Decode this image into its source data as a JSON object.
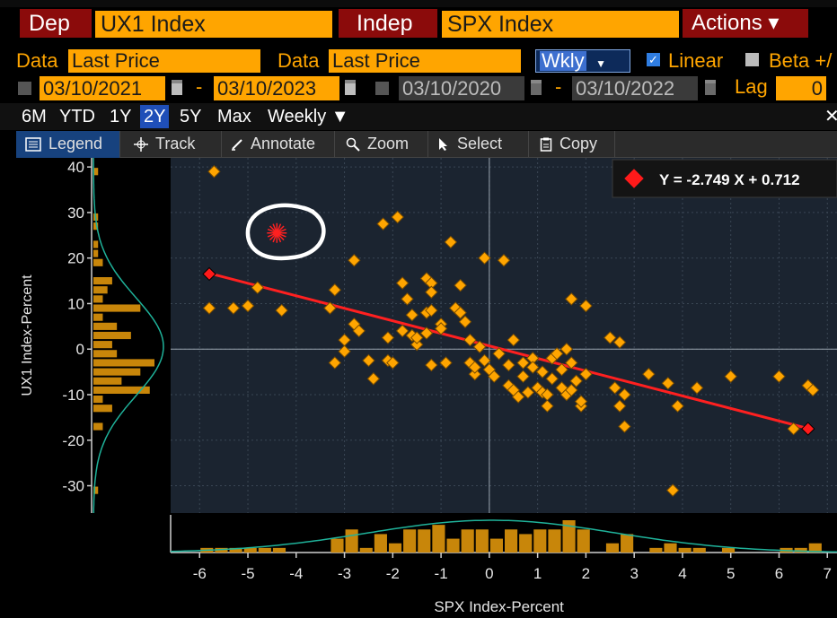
{
  "header": {
    "dep_label": "Dep",
    "dep_value": "UX1 Index",
    "indep_label": "Indep",
    "indep_value": "SPX Index",
    "actions_label": "Actions ▾"
  },
  "data_row": {
    "dep_data_label": "Data",
    "dep_data_value": "Last Price",
    "indep_data_label": "Data",
    "indep_data_value": "Last Price",
    "frequency": "Wkly",
    "linear_label": "Linear",
    "linear_checked": true,
    "beta_label": "Beta +/"
  },
  "date_row": {
    "dep_start": "03/10/2021",
    "dep_end": "03/10/2023",
    "indep_start": "03/10/2020",
    "indep_end": "03/10/2022",
    "lag_label": "Lag",
    "lag_value": "0"
  },
  "periods": [
    "6M",
    "YTD",
    "1Y",
    "2Y",
    "5Y",
    "Max"
  ],
  "active_period": "2Y",
  "periodicity": "Weekly ▼",
  "toolbar": {
    "legend": "Legend",
    "track": "Track",
    "annotate": "Annotate",
    "zoom": "Zoom",
    "select": "Select",
    "copy": "Copy"
  },
  "colors": {
    "accent": "#ffa500",
    "header_red": "#8b0b0b",
    "plot_bg": "#1b2430",
    "regression_line": "#ff2020",
    "distribution_curve": "#1fb29a"
  },
  "chart_data": {
    "type": "scatter",
    "xlabel": "SPX Index-Percent",
    "ylabel": "UX1 Index-Percent",
    "xlim": [
      -6.6,
      7.2
    ],
    "ylim": [
      -36,
      42
    ],
    "x_ticks": [
      -6,
      -5,
      -4,
      -3,
      -2,
      -1,
      0,
      1,
      2,
      3,
      4,
      5,
      6,
      7
    ],
    "y_ticks": [
      40,
      30,
      20,
      10,
      0,
      -10,
      -20,
      -30
    ],
    "regression": {
      "label": "Y = -2.749 X + 0.712",
      "slope": -2.749,
      "intercept": 0.712,
      "x_range": [
        -5.8,
        6.6
      ]
    },
    "points": [
      [
        -5.7,
        39
      ],
      [
        -5.8,
        9
      ],
      [
        -5.3,
        9
      ],
      [
        -5.0,
        9.5
      ],
      [
        -4.8,
        13.5
      ],
      [
        -4.3,
        8.5
      ],
      [
        -3.3,
        9
      ],
      [
        -3.2,
        13
      ],
      [
        -3.2,
        -3
      ],
      [
        -3.0,
        -0.5
      ],
      [
        -3.0,
        2
      ],
      [
        -2.8,
        5.5
      ],
      [
        -2.7,
        4
      ],
      [
        -2.8,
        19.5
      ],
      [
        -2.5,
        -2.5
      ],
      [
        -2.4,
        -6.5
      ],
      [
        -2.2,
        27.5
      ],
      [
        -2.1,
        2.5
      ],
      [
        -2.1,
        -2.5
      ],
      [
        -2.0,
        -3
      ],
      [
        -1.9,
        29
      ],
      [
        -1.8,
        4
      ],
      [
        -1.8,
        14.5
      ],
      [
        -1.7,
        11
      ],
      [
        -1.6,
        7.5
      ],
      [
        -1.6,
        3
      ],
      [
        -1.5,
        1
      ],
      [
        -1.5,
        2.5
      ],
      [
        -1.3,
        3.5
      ],
      [
        -1.3,
        8
      ],
      [
        -1.3,
        15.5
      ],
      [
        -1.2,
        14.5
      ],
      [
        -1.2,
        12.5
      ],
      [
        -1.2,
        -3.5
      ],
      [
        -1.2,
        8.5
      ],
      [
        -1.0,
        5.5
      ],
      [
        -1.0,
        4.5
      ],
      [
        -0.9,
        -3
      ],
      [
        -0.8,
        23.5
      ],
      [
        -0.7,
        9
      ],
      [
        -0.6,
        14
      ],
      [
        -0.6,
        8
      ],
      [
        -0.5,
        6
      ],
      [
        -0.4,
        2
      ],
      [
        -0.4,
        -3
      ],
      [
        -0.3,
        -5.5
      ],
      [
        -0.3,
        -4
      ],
      [
        -0.2,
        0.5
      ],
      [
        -0.1,
        20
      ],
      [
        -0.1,
        -2.5
      ],
      [
        0.0,
        -4.5
      ],
      [
        0.1,
        -6
      ],
      [
        0.2,
        -1
      ],
      [
        0.3,
        19.5
      ],
      [
        0.4,
        -3.5
      ],
      [
        0.4,
        -8
      ],
      [
        0.5,
        -9
      ],
      [
        0.5,
        2
      ],
      [
        0.6,
        -10.5
      ],
      [
        0.7,
        -6
      ],
      [
        0.7,
        -3
      ],
      [
        0.8,
        -9.5
      ],
      [
        0.9,
        -2
      ],
      [
        0.9,
        -4
      ],
      [
        1.0,
        -8.5
      ],
      [
        1.1,
        -5
      ],
      [
        1.1,
        -9.5
      ],
      [
        1.2,
        -12.5
      ],
      [
        1.2,
        -10
      ],
      [
        1.3,
        -6.5
      ],
      [
        1.3,
        -2
      ],
      [
        1.4,
        -1
      ],
      [
        1.5,
        -4.5
      ],
      [
        1.5,
        -8.5
      ],
      [
        1.6,
        -10
      ],
      [
        1.6,
        0
      ],
      [
        1.7,
        -3
      ],
      [
        1.7,
        -9
      ],
      [
        1.7,
        11
      ],
      [
        1.8,
        -7
      ],
      [
        1.9,
        -12.5
      ],
      [
        1.9,
        -11.5
      ],
      [
        2.0,
        -5.5
      ],
      [
        2.0,
        9.5
      ],
      [
        2.5,
        2.5
      ],
      [
        2.6,
        -8.5
      ],
      [
        2.7,
        1.5
      ],
      [
        2.7,
        -12.5
      ],
      [
        2.8,
        -10
      ],
      [
        2.8,
        -17
      ],
      [
        3.3,
        -5.5
      ],
      [
        3.7,
        -7.5
      ],
      [
        3.9,
        -12.5
      ],
      [
        3.8,
        -31
      ],
      [
        4.3,
        -8.5
      ],
      [
        5.0,
        -6
      ],
      [
        6.0,
        -6
      ],
      [
        6.3,
        -17.5
      ],
      [
        6.6,
        -8
      ],
      [
        6.7,
        -9
      ]
    ],
    "highlight_points": [
      [
        -5.8,
        16.5
      ],
      [
        6.6,
        -17.5
      ]
    ],
    "annotation_marker": [
      -4.4,
      25.5
    ]
  }
}
